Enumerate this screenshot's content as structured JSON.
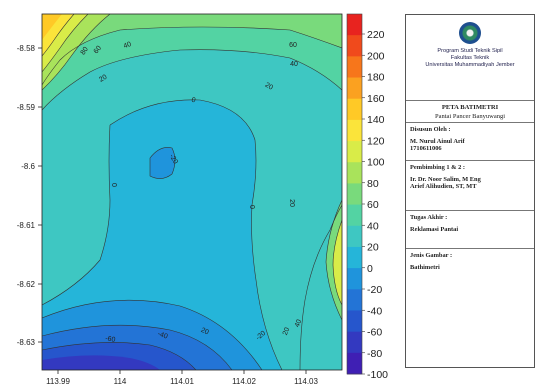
{
  "map": {
    "x_ticks": [
      "113.99",
      "114",
      "114.01",
      "114.02",
      "114.03"
    ],
    "y_ticks": [
      "-8.58",
      "-8.59",
      "-8.6",
      "-8.61",
      "-8.62",
      "-8.63"
    ],
    "contour_labels": [
      "80",
      "60",
      "40",
      "60",
      "40",
      "20",
      "20",
      "0",
      "-20",
      "0",
      "0",
      "20",
      "20",
      "20",
      "40",
      "-20",
      "-40",
      "-60"
    ]
  },
  "colorbar": {
    "ticks": [
      "220",
      "200",
      "180",
      "160",
      "140",
      "120",
      "100",
      "80",
      "60",
      "40",
      "20",
      "0",
      "-20",
      "-40",
      "-60",
      "-80",
      "-100"
    ],
    "colors": [
      "#e8231f",
      "#f04a1c",
      "#f7761b",
      "#fba120",
      "#ffc926",
      "#fbe43a",
      "#d9ec48",
      "#a9e35b",
      "#79da7c",
      "#53d3a3",
      "#3ec7c2",
      "#25b5d9",
      "#1f94dc",
      "#2374d6",
      "#2656cc",
      "#3339c0",
      "#3f1fb4"
    ]
  },
  "panel": {
    "org_lines": [
      "Program Studi Teknik Sipil",
      "Fakultas Teknik",
      "Universitas Muhammadiyah Jember"
    ],
    "title": "PETA BATIMETRI",
    "subtitle": "Pantai Pancer Banyuwangi",
    "disusun_label": "Disusun Oleh :",
    "disusun_name": "M. Nurul Ainul Arif",
    "disusun_id": "1710611006",
    "pembimbing_label": "Pembimbing 1 & 2 :",
    "pembimbing_1": "Ir. Dr. Noor Salim, M Eng",
    "pembimbing_2": "Arief Alihudien, ST, MT",
    "tugas_label": "Tugas Akhir :",
    "tugas_value": "Reklamasi Pantai",
    "jenis_label": "Jenis Gambar :",
    "jenis_value": "Bathimetri"
  }
}
